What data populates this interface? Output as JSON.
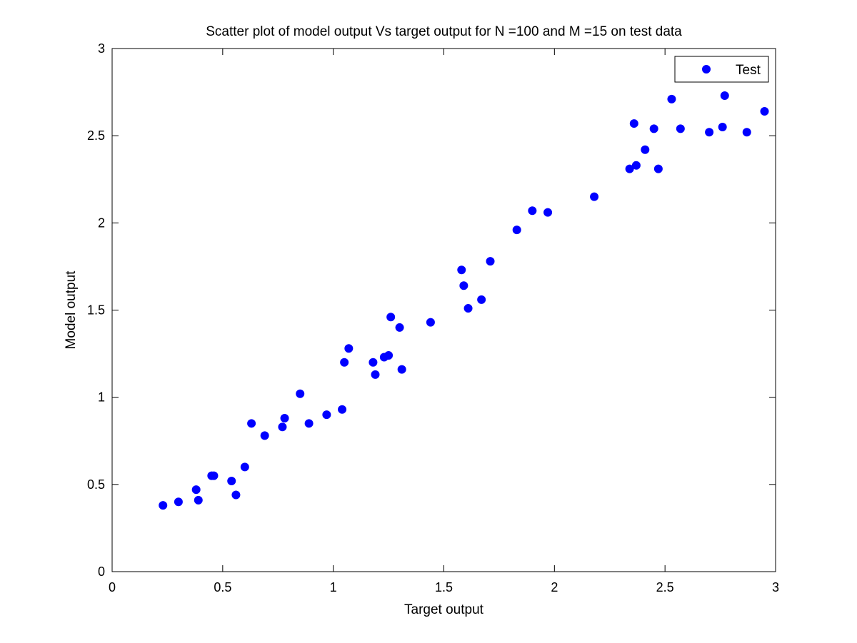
{
  "chart_data": {
    "type": "scatter",
    "title": "Scatter plot of model output Vs target output for N =100 and M =15 on test data",
    "xlabel": "Target output",
    "ylabel": "Model output",
    "xlim": [
      0,
      3
    ],
    "ylim": [
      0,
      3
    ],
    "xticks": [
      "0",
      "0.5",
      "1",
      "1.5",
      "2",
      "2.5",
      "3"
    ],
    "yticks": [
      "0",
      "0.5",
      "1",
      "1.5",
      "2",
      "2.5",
      "3"
    ],
    "grid": false,
    "legend_position": "top-right",
    "marker_color": "#0000ff",
    "series": [
      {
        "name": "Test",
        "points": [
          [
            0.23,
            0.38
          ],
          [
            0.3,
            0.4
          ],
          [
            0.38,
            0.47
          ],
          [
            0.39,
            0.41
          ],
          [
            0.45,
            0.55
          ],
          [
            0.46,
            0.55
          ],
          [
            0.54,
            0.52
          ],
          [
            0.56,
            0.44
          ],
          [
            0.6,
            0.6
          ],
          [
            0.63,
            0.85
          ],
          [
            0.69,
            0.78
          ],
          [
            0.77,
            0.83
          ],
          [
            0.78,
            0.88
          ],
          [
            0.85,
            1.02
          ],
          [
            0.89,
            0.85
          ],
          [
            0.97,
            0.9
          ],
          [
            1.04,
            0.93
          ],
          [
            1.05,
            1.2
          ],
          [
            1.07,
            1.28
          ],
          [
            1.18,
            1.2
          ],
          [
            1.19,
            1.13
          ],
          [
            1.23,
            1.23
          ],
          [
            1.25,
            1.24
          ],
          [
            1.26,
            1.46
          ],
          [
            1.3,
            1.4
          ],
          [
            1.31,
            1.16
          ],
          [
            1.44,
            1.43
          ],
          [
            1.58,
            1.73
          ],
          [
            1.59,
            1.64
          ],
          [
            1.61,
            1.51
          ],
          [
            1.67,
            1.56
          ],
          [
            1.71,
            1.78
          ],
          [
            1.83,
            1.96
          ],
          [
            1.9,
            2.07
          ],
          [
            1.97,
            2.06
          ],
          [
            2.18,
            2.15
          ],
          [
            2.34,
            2.31
          ],
          [
            2.36,
            2.57
          ],
          [
            2.37,
            2.33
          ],
          [
            2.41,
            2.42
          ],
          [
            2.45,
            2.54
          ],
          [
            2.47,
            2.31
          ],
          [
            2.53,
            2.71
          ],
          [
            2.57,
            2.54
          ],
          [
            2.7,
            2.52
          ],
          [
            2.76,
            2.55
          ],
          [
            2.77,
            2.73
          ],
          [
            2.87,
            2.52
          ],
          [
            2.95,
            2.64
          ]
        ]
      }
    ]
  }
}
